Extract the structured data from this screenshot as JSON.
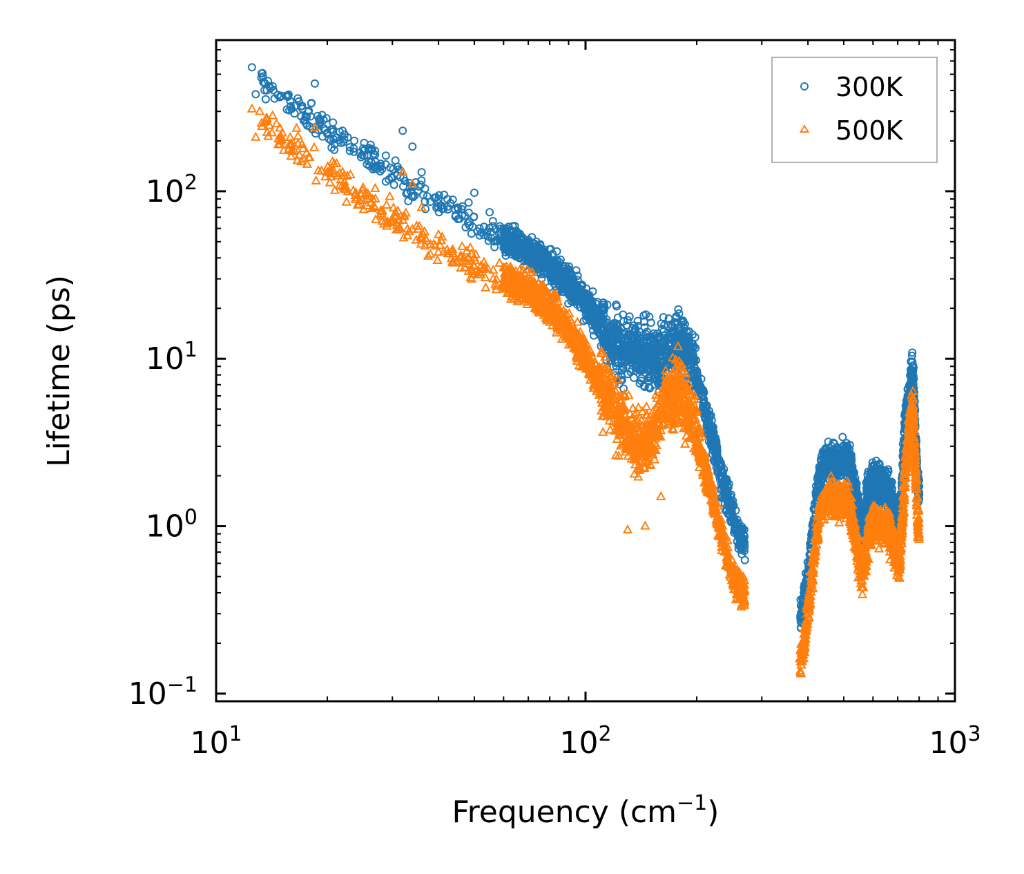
{
  "chart_data": {
    "type": "scatter",
    "title": "",
    "xlabel": "Frequency (cm",
    "xlabel_sup": "−1",
    "xlabel_end": ")",
    "ylabel": "Lifetime (ps)",
    "xscale": "log",
    "yscale": "log",
    "xlim": [
      10,
      1000
    ],
    "ylim": [
      0.09,
      800
    ],
    "x_ticks": [
      {
        "base": "10",
        "exp": "1",
        "value": 10
      },
      {
        "base": "10",
        "exp": "2",
        "value": 100
      },
      {
        "base": "10",
        "exp": "3",
        "value": 1000
      }
    ],
    "y_ticks": [
      {
        "base": "10",
        "exp": "−1",
        "value": 0.1
      },
      {
        "base": "10",
        "exp": "0",
        "value": 1
      },
      {
        "base": "10",
        "exp": "1",
        "value": 10
      },
      {
        "base": "10",
        "exp": "2",
        "value": 100
      }
    ],
    "legend_position": "top-right",
    "series": [
      {
        "name": "300K",
        "marker": "circle",
        "color": "#1f77b4",
        "trend": [
          [
            12.5,
            500
          ],
          [
            15,
            360
          ],
          [
            20,
            230
          ],
          [
            25,
            170
          ],
          [
            30,
            130
          ],
          [
            35,
            100
          ],
          [
            40,
            85
          ],
          [
            50,
            65
          ],
          [
            60,
            52
          ],
          [
            70,
            44
          ],
          [
            80,
            36
          ],
          [
            90,
            28
          ],
          [
            100,
            22
          ],
          [
            110,
            16
          ],
          [
            120,
            12
          ],
          [
            130,
            11
          ],
          [
            140,
            10.5
          ],
          [
            150,
            10
          ],
          [
            160,
            10.5
          ],
          [
            170,
            12
          ],
          [
            180,
            12.5
          ],
          [
            190,
            11
          ],
          [
            200,
            8
          ],
          [
            210,
            5
          ],
          [
            220,
            3.5
          ],
          [
            230,
            2.2
          ],
          [
            240,
            1.6
          ],
          [
            250,
            1.2
          ],
          [
            260,
            0.9
          ],
          [
            270,
            0.75
          ],
          [
            380,
            0.26
          ],
          [
            390,
            0.35
          ],
          [
            400,
            0.5
          ],
          [
            410,
            0.8
          ],
          [
            420,
            1.3
          ],
          [
            430,
            2.0
          ],
          [
            450,
            2.5
          ],
          [
            480,
            2.4
          ],
          [
            500,
            2.6
          ],
          [
            520,
            2.5
          ],
          [
            540,
            1.5
          ],
          [
            560,
            0.9
          ],
          [
            580,
            1.6
          ],
          [
            600,
            1.9
          ],
          [
            630,
            1.8
          ],
          [
            660,
            1.7
          ],
          [
            690,
            1.2
          ],
          [
            710,
            1.0
          ],
          [
            730,
            3.5
          ],
          [
            750,
            6.0
          ],
          [
            770,
            8.5
          ],
          [
            790,
            2.0
          ],
          [
            800,
            1.6
          ]
        ],
        "outliers": [
          [
            12.5,
            550
          ],
          [
            12.8,
            380
          ],
          [
            15,
            370
          ],
          [
            16,
            310
          ],
          [
            17,
            280
          ],
          [
            18.5,
            440
          ],
          [
            20,
            220
          ],
          [
            22,
            230
          ],
          [
            25,
            180
          ],
          [
            27,
            150
          ],
          [
            30,
            120
          ],
          [
            31,
            140
          ],
          [
            32,
            230
          ],
          [
            34,
            185
          ],
          [
            36,
            130
          ],
          [
            40,
            90
          ],
          [
            45,
            80
          ],
          [
            50,
            98
          ],
          [
            55,
            75
          ],
          [
            60,
            60
          ],
          [
            70,
            50
          ],
          [
            80,
            45
          ],
          [
            90,
            31
          ],
          [
            130,
            17
          ],
          [
            170,
            16
          ]
        ]
      },
      {
        "name": "500K",
        "marker": "triangle",
        "color": "#ff7f0e",
        "trend": [
          [
            12.5,
            300
          ],
          [
            15,
            210
          ],
          [
            20,
            130
          ],
          [
            25,
            90
          ],
          [
            30,
            70
          ],
          [
            35,
            55
          ],
          [
            40,
            45
          ],
          [
            50,
            36
          ],
          [
            60,
            30
          ],
          [
            70,
            26
          ],
          [
            80,
            20
          ],
          [
            90,
            15
          ],
          [
            100,
            10
          ],
          [
            110,
            7
          ],
          [
            120,
            5
          ],
          [
            130,
            3.5
          ],
          [
            140,
            3.0
          ],
          [
            150,
            3.5
          ],
          [
            160,
            4.5
          ],
          [
            170,
            6.0
          ],
          [
            180,
            6.5
          ],
          [
            190,
            5.0
          ],
          [
            200,
            3.5
          ],
          [
            210,
            2.2
          ],
          [
            220,
            1.5
          ],
          [
            230,
            1.0
          ],
          [
            240,
            0.7
          ],
          [
            250,
            0.5
          ],
          [
            260,
            0.42
          ],
          [
            270,
            0.4
          ],
          [
            380,
            0.15
          ],
          [
            390,
            0.2
          ],
          [
            400,
            0.3
          ],
          [
            410,
            0.5
          ],
          [
            420,
            0.8
          ],
          [
            430,
            1.2
          ],
          [
            450,
            1.5
          ],
          [
            480,
            1.4
          ],
          [
            500,
            1.5
          ],
          [
            520,
            1.3
          ],
          [
            540,
            0.8
          ],
          [
            560,
            0.5
          ],
          [
            580,
            0.8
          ],
          [
            600,
            1.1
          ],
          [
            630,
            1.0
          ],
          [
            660,
            1.0
          ],
          [
            690,
            0.7
          ],
          [
            710,
            0.6
          ],
          [
            730,
            1.8
          ],
          [
            750,
            3.5
          ],
          [
            770,
            5.5
          ],
          [
            790,
            1.2
          ],
          [
            800,
            0.9
          ]
        ],
        "outliers": [
          [
            12.5,
            310
          ],
          [
            12.8,
            210
          ],
          [
            15,
            210
          ],
          [
            16,
            175
          ],
          [
            17,
            150
          ],
          [
            18.5,
            240
          ],
          [
            20,
            130
          ],
          [
            22,
            130
          ],
          [
            25,
            105
          ],
          [
            27,
            90
          ],
          [
            30,
            65
          ],
          [
            32,
            130
          ],
          [
            34,
            110
          ],
          [
            36,
            80
          ],
          [
            40,
            55
          ],
          [
            50,
            40
          ],
          [
            60,
            35
          ],
          [
            100,
            12
          ],
          [
            130,
            0.95
          ],
          [
            145,
            1.0
          ],
          [
            160,
            1.5
          ]
        ]
      }
    ]
  }
}
